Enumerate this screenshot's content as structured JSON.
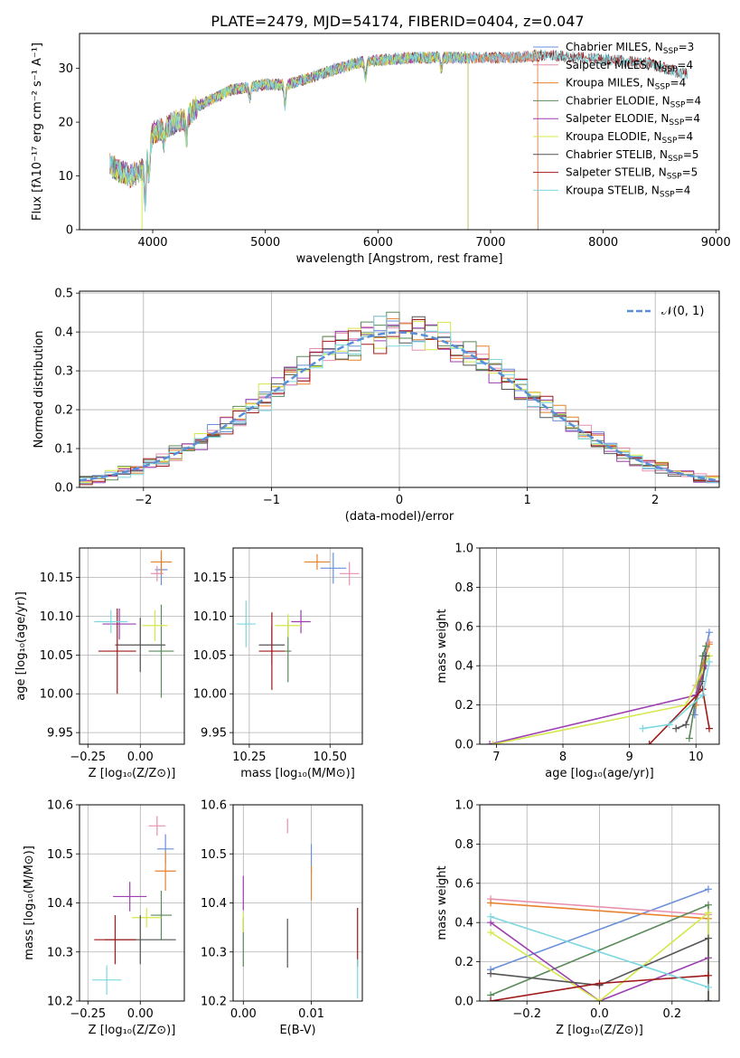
{
  "figure": {
    "title": "PLATE=2479, MJD=54174, FIBERID=0404, z=0.047"
  },
  "chart_data": [
    {
      "id": "spectrum",
      "type": "line",
      "xlabel": "wavelength [Angstrom, rest frame]",
      "ylabel": "Flux [fλ10⁻¹⁷ erg cm⁻² s⁻¹ A⁻¹]",
      "xlim": [
        3350,
        9030
      ],
      "ylim": [
        0,
        36.5
      ],
      "xticks": [
        4000,
        5000,
        6000,
        7000,
        8000,
        9000
      ],
      "yticks": [
        0,
        10,
        20,
        30
      ],
      "grid": false,
      "legend_position": "top-right",
      "continuum": {
        "x": [
          3620,
          3700,
          3800,
          3900,
          4000,
          4100,
          4200,
          4300,
          4400,
          4500,
          4700,
          5000,
          5200,
          5500,
          5800,
          6000,
          6300,
          6600,
          6900,
          7200,
          7500,
          7800,
          8100,
          8400,
          8700
        ],
        "y": [
          12,
          11,
          10,
          11,
          18,
          19,
          20,
          21,
          23,
          24,
          26,
          27,
          27,
          29,
          31,
          31.5,
          32,
          32,
          32,
          32,
          32.5,
          32,
          31.5,
          31,
          29
        ]
      },
      "series": [
        {
          "name": "Chabrier MILES, N<sub>SSP</sub>=3",
          "label_main": "Chabrier MILES, N",
          "label_sub": "SSP",
          "label_tail": "=3",
          "color": "#6a8fd8",
          "xmax": 7420
        },
        {
          "name": "Salpeter MILES, N<sub>SSP</sub>=4",
          "label_main": "Salpeter MILES, N",
          "label_sub": "SSP",
          "label_tail": "=4",
          "color": "#e88fb0",
          "xmax": 7420
        },
        {
          "name": "Kroupa MILES, N<sub>SSP</sub>=4",
          "label_main": "Kroupa MILES, N",
          "label_sub": "SSP",
          "label_tail": "=4",
          "color": "#e8802a",
          "xmax": 7420
        },
        {
          "name": "Chabrier ELODIE, N<sub>SSP</sub>=4",
          "label_main": "Chabrier ELODIE, N",
          "label_sub": "SSP",
          "label_tail": "=4",
          "color": "#5a8a5a",
          "xmax": 6800
        },
        {
          "name": "Salpeter ELODIE, N<sub>SSP</sub>=4",
          "label_main": "Salpeter ELODIE, N",
          "label_sub": "SSP",
          "label_tail": "=4",
          "color": "#9c3fb0",
          "xmax": 6800
        },
        {
          "name": "Kroupa ELODIE, N<sub>SSP</sub>=4",
          "label_main": "Kroupa ELODIE, N",
          "label_sub": "SSP",
          "label_tail": "=4",
          "color": "#d4e84a",
          "xmax": 6800
        },
        {
          "name": "Chabrier STELIB, N<sub>SSP</sub>=5",
          "label_main": "Chabrier STELIB, N",
          "label_sub": "SSP",
          "label_tail": "=5",
          "color": "#555555",
          "xmax": 8750
        },
        {
          "name": "Salpeter STELIB, N<sub>SSP</sub>=5",
          "label_main": "Salpeter STELIB, N",
          "label_sub": "SSP",
          "label_tail": "=5",
          "color": "#a01818",
          "xmax": 8750
        },
        {
          "name": "Kroupa STELIB, N<sub>SSP</sub>=4",
          "label_main": "Kroupa STELIB, N",
          "label_sub": "SSP",
          "label_tail": "=4",
          "color": "#7dd8e0",
          "xmax": 8750
        }
      ]
    },
    {
      "id": "residuals",
      "type": "line",
      "xlabel": "(data-model)/error",
      "ylabel": "Normed distribution",
      "xlim": [
        -2.5,
        2.5
      ],
      "ylim": [
        0,
        0.505
      ],
      "xticks": [
        -2,
        -1,
        0,
        1,
        2
      ],
      "yticks": [
        0.0,
        0.1,
        0.2,
        0.3,
        0.4,
        0.5
      ],
      "ytick_labels": [
        "0.0",
        "0.1",
        "0.2",
        "0.3",
        "0.4",
        "0.5"
      ],
      "xtick_labels": [
        "−2",
        "−1",
        "0",
        "1",
        "2"
      ],
      "grid": true,
      "legend": "𝒩(0, 1)",
      "legend_position": "top-right",
      "bin_width": 0.1
    },
    {
      "id": "age-vs-z",
      "type": "scatter",
      "xlabel": "Z [log₁₀(Z/Z⊙)]",
      "ylabel": "age  [log₁₀(age/yr)]",
      "xlim": [
        -0.29,
        0.21
      ],
      "ylim": [
        9.935,
        10.188
      ],
      "xticks": [
        -0.25,
        0.0
      ],
      "xtick_labels": [
        "−0.25",
        "0.00"
      ],
      "yticks": [
        9.95,
        10.0,
        10.05,
        10.1,
        10.15
      ],
      "ytick_labels": [
        "9.95",
        "10.00",
        "10.05",
        "10.10",
        "10.15"
      ],
      "grid": true,
      "points": [
        {
          "series": 0,
          "x": 0.1,
          "y": 10.16,
          "xerr": 0.03,
          "yerr": 0.02
        },
        {
          "series": 1,
          "x": 0.08,
          "y": 10.155,
          "xerr": 0.03,
          "yerr": 0.01
        },
        {
          "series": 2,
          "x": 0.1,
          "y": 10.17,
          "xerr": 0.05,
          "yerr": 0.015
        },
        {
          "series": 3,
          "x": 0.1,
          "y": 10.055,
          "xerr": 0.06,
          "yerr": 0.06
        },
        {
          "series": 4,
          "x": -0.1,
          "y": 10.09,
          "xerr": 0.08,
          "yerr": 0.02
        },
        {
          "series": 5,
          "x": 0.07,
          "y": 10.088,
          "xerr": 0.06,
          "yerr": 0.02
        },
        {
          "series": 6,
          "x": 0.0,
          "y": 10.063,
          "xerr": 0.12,
          "yerr": 0.035
        },
        {
          "series": 7,
          "x": -0.11,
          "y": 10.055,
          "xerr": 0.09,
          "yerr": 0.055
        },
        {
          "series": 8,
          "x": -0.14,
          "y": 10.093,
          "xerr": 0.08,
          "yerr": 0.015
        }
      ]
    },
    {
      "id": "age-vs-mass",
      "type": "scatter",
      "xlabel": "mass [log₁₀(M/M⊙)]",
      "xlim": [
        10.2,
        10.6
      ],
      "ylim": [
        9.935,
        10.188
      ],
      "xticks": [
        10.25,
        10.5
      ],
      "xtick_labels": [
        "10.25",
        "10.50"
      ],
      "yticks": [
        9.95,
        10.0,
        10.05,
        10.1,
        10.15
      ],
      "ytick_labels": [
        "9.95",
        "10.00",
        "10.05",
        "10.10",
        "10.15"
      ],
      "grid": true,
      "points": [
        {
          "series": 0,
          "x": 10.51,
          "y": 10.162,
          "xerr": 0.04,
          "yerr": 0.02
        },
        {
          "series": 1,
          "x": 10.56,
          "y": 10.155,
          "xerr": 0.03,
          "yerr": 0.015
        },
        {
          "series": 2,
          "x": 10.46,
          "y": 10.17,
          "xerr": 0.04,
          "yerr": 0.01
        },
        {
          "series": 3,
          "x": 10.37,
          "y": 10.055,
          "xerr": 0.01,
          "yerr": 0.04
        },
        {
          "series": 4,
          "x": 10.41,
          "y": 10.093,
          "xerr": 0.03,
          "yerr": 0.015
        },
        {
          "series": 5,
          "x": 10.37,
          "y": 10.088,
          "xerr": 0.04,
          "yerr": 0.015
        },
        {
          "series": 6,
          "x": 10.32,
          "y": 10.063,
          "xerr": 0.04,
          "yerr": 0.025
        },
        {
          "series": 7,
          "x": 10.32,
          "y": 10.055,
          "xerr": 0.04,
          "yerr": 0.05
        },
        {
          "series": 8,
          "x": 10.24,
          "y": 10.09,
          "xerr": 0.03,
          "yerr": 0.03
        }
      ]
    },
    {
      "id": "weight-vs-age",
      "type": "line",
      "xlabel": "age  [log₁₀(age/yr)]",
      "ylabel": "mass weight",
      "xlim": [
        6.75,
        10.35
      ],
      "ylim": [
        0,
        1.0
      ],
      "xticks": [
        7,
        8,
        9,
        10
      ],
      "xtick_labels": [
        "7",
        "8",
        "9",
        "10"
      ],
      "yticks": [
        0.0,
        0.2,
        0.4,
        0.6,
        0.8,
        1.0
      ],
      "ytick_labels": [
        "0.0",
        "0.2",
        "0.4",
        "0.6",
        "0.8",
        "1.0"
      ],
      "grid": true,
      "series": [
        {
          "series": 0,
          "x": [
            9.98,
            10.1,
            10.2
          ],
          "y": [
            0.15,
            0.4,
            0.57
          ]
        },
        {
          "series": 1,
          "x": [
            10.0,
            10.15,
            10.2
          ],
          "y": [
            0.3,
            0.45,
            0.52
          ]
        },
        {
          "series": 2,
          "x": [
            10.0,
            10.1,
            10.2
          ],
          "y": [
            0.2,
            0.4,
            0.51
          ]
        },
        {
          "series": 3,
          "x": [
            9.9,
            10.1,
            10.15
          ],
          "y": [
            0.03,
            0.45,
            0.5
          ]
        },
        {
          "series": 4,
          "x": [
            6.9,
            10.0,
            10.15
          ],
          "y": [
            0.0,
            0.25,
            0.4
          ]
        },
        {
          "series": 5,
          "x": [
            6.95,
            9.85,
            10.2
          ],
          "y": [
            0.0,
            0.2,
            0.45
          ]
        },
        {
          "series": 6,
          "x": [
            9.7,
            9.85,
            10.1,
            10.15
          ],
          "y": [
            0.08,
            0.1,
            0.32,
            0.45
          ]
        },
        {
          "series": 7,
          "x": [
            9.3,
            10.1,
            10.2
          ],
          "y": [
            0.0,
            0.28,
            0.08
          ]
        },
        {
          "series": 8,
          "x": [
            9.2,
            9.6,
            10.1,
            10.2
          ],
          "y": [
            0.08,
            0.1,
            0.25,
            0.42
          ]
        }
      ]
    },
    {
      "id": "mass-vs-z",
      "type": "scatter",
      "xlabel": "Z [log₁₀(Z/Z⊙)]",
      "ylabel": "mass [log₁₀(M/M⊙)]",
      "xlim": [
        -0.29,
        0.21
      ],
      "ylim": [
        10.2,
        10.6
      ],
      "xticks": [
        -0.25,
        0.0
      ],
      "xtick_labels": [
        "−0.25",
        "0.00"
      ],
      "yticks": [
        10.2,
        10.3,
        10.4,
        10.5,
        10.6
      ],
      "ytick_labels": [
        "10.2",
        "10.3",
        "10.4",
        "10.5",
        "10.6"
      ],
      "grid": true,
      "points": [
        {
          "series": 0,
          "x": 0.12,
          "y": 10.51,
          "xerr": 0.04,
          "yerr": 0.03
        },
        {
          "series": 1,
          "x": 0.08,
          "y": 10.557,
          "xerr": 0.04,
          "yerr": 0.02
        },
        {
          "series": 2,
          "x": 0.12,
          "y": 10.465,
          "xerr": 0.05,
          "yerr": 0.04
        },
        {
          "series": 3,
          "x": 0.1,
          "y": 10.375,
          "xerr": 0.05,
          "yerr": 0.05
        },
        {
          "series": 4,
          "x": -0.05,
          "y": 10.413,
          "xerr": 0.08,
          "yerr": 0.03
        },
        {
          "series": 5,
          "x": 0.03,
          "y": 10.37,
          "xerr": 0.07,
          "yerr": 0.02
        },
        {
          "series": 6,
          "x": 0.0,
          "y": 10.325,
          "xerr": 0.17,
          "yerr": 0.05
        },
        {
          "series": 7,
          "x": -0.12,
          "y": 10.325,
          "xerr": 0.1,
          "yerr": 0.05
        },
        {
          "series": 8,
          "x": -0.16,
          "y": 10.243,
          "xerr": 0.07,
          "yerr": 0.03
        }
      ]
    },
    {
      "id": "mass-vs-ebv",
      "type": "scatter",
      "xlabel": "E(B-V)",
      "xlim": [
        -0.0015,
        0.0175
      ],
      "ylim": [
        10.2,
        10.6
      ],
      "xticks": [
        0.0,
        0.01
      ],
      "xtick_labels": [
        "0.00",
        "0.01"
      ],
      "yticks": [
        10.2,
        10.3,
        10.4,
        10.5,
        10.6
      ],
      "ytick_labels": [
        "10.2",
        "10.3",
        "10.4",
        "10.5",
        "10.6"
      ],
      "grid": true,
      "points": [
        {
          "series": 0,
          "x": 0.01,
          "y": 10.49,
          "xerr": 0.0,
          "yerr": 0.03
        },
        {
          "series": 1,
          "x": 0.0065,
          "y": 10.557,
          "xerr": 0.0,
          "yerr": 0.015
        },
        {
          "series": 2,
          "x": 0.01,
          "y": 10.44,
          "xerr": 0.0,
          "yerr": 0.035
        },
        {
          "series": 3,
          "x": 0.0,
          "y": 10.32,
          "xerr": 0.0,
          "yerr": 0.05
        },
        {
          "series": 4,
          "x": 0.0,
          "y": 10.42,
          "xerr": 0.0,
          "yerr": 0.035
        },
        {
          "series": 5,
          "x": 0.0,
          "y": 10.36,
          "xerr": 0.0,
          "yerr": 0.02
        },
        {
          "series": 6,
          "x": 0.0065,
          "y": 10.318,
          "xerr": 0.0,
          "yerr": 0.05
        },
        {
          "series": 7,
          "x": 0.0168,
          "y": 10.33,
          "xerr": 0.0,
          "yerr": 0.06
        },
        {
          "series": 8,
          "x": 0.0168,
          "y": 10.245,
          "xerr": 0.0,
          "yerr": 0.04
        }
      ]
    },
    {
      "id": "weight-vs-z",
      "type": "line",
      "xlabel": "Z [log₁₀(Z/Z⊙)]",
      "ylabel": "mass weight",
      "xlim": [
        -0.33,
        0.33
      ],
      "ylim": [
        0,
        1.0
      ],
      "xticks": [
        -0.2,
        0.0,
        0.2
      ],
      "xtick_labels": [
        "−0.2",
        "0.0",
        "0.2"
      ],
      "yticks": [
        0.0,
        0.2,
        0.4,
        0.6,
        0.8,
        1.0
      ],
      "ytick_labels": [
        "0.0",
        "0.2",
        "0.4",
        "0.6",
        "0.8",
        "1.0"
      ],
      "grid": true,
      "series": [
        {
          "series": 0,
          "x": [
            -0.3,
            0.3
          ],
          "y": [
            0.16,
            0.57
          ]
        },
        {
          "series": 1,
          "x": [
            -0.3,
            0.3
          ],
          "y": [
            0.52,
            0.44
          ]
        },
        {
          "series": 2,
          "x": [
            -0.3,
            0.3
          ],
          "y": [
            0.5,
            0.42
          ]
        },
        {
          "series": 3,
          "x": [
            -0.3,
            0.3,
            0.3
          ],
          "y": [
            0.03,
            0.49,
            0.0
          ]
        },
        {
          "series": 4,
          "x": [
            -0.3,
            0.0,
            0.3,
            0.3
          ],
          "y": [
            0.4,
            0.0,
            0.22,
            0.0
          ]
        },
        {
          "series": 5,
          "x": [
            -0.3,
            0.0,
            0.3,
            0.3
          ],
          "y": [
            0.35,
            0.0,
            0.45,
            0.0
          ]
        },
        {
          "series": 6,
          "x": [
            -0.3,
            0.0,
            0.3,
            0.3
          ],
          "y": [
            0.14,
            0.08,
            0.32,
            0.0
          ]
        },
        {
          "series": 7,
          "x": [
            -0.3,
            0.0,
            0.3
          ],
          "y": [
            0.0,
            0.09,
            0.13
          ]
        },
        {
          "series": 8,
          "x": [
            -0.3,
            0.3
          ],
          "y": [
            0.43,
            0.07
          ]
        }
      ]
    }
  ]
}
